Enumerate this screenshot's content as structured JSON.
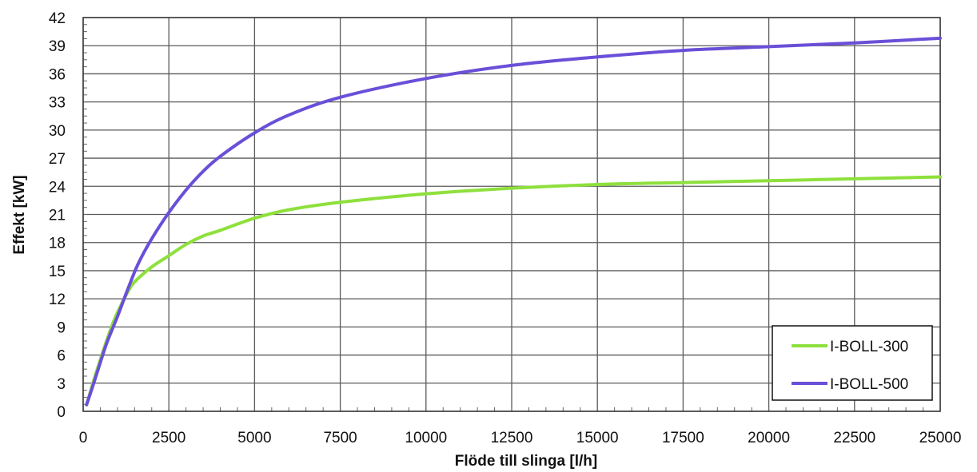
{
  "chart_data": {
    "type": "line",
    "title": "",
    "xlabel": "Flöde till slinga [l/h]",
    "ylabel": "Effekt [kW]",
    "xlim": [
      0,
      25000
    ],
    "ylim": [
      0,
      42
    ],
    "x_ticks": [
      0,
      2500,
      5000,
      7500,
      10000,
      12500,
      15000,
      17500,
      20000,
      22500,
      25000
    ],
    "y_ticks": [
      0,
      3,
      6,
      9,
      12,
      15,
      18,
      21,
      24,
      27,
      30,
      33,
      36,
      39,
      42
    ],
    "x_tick_labels": [
      "0",
      "2500",
      "5000",
      "7500",
      "10000",
      "12500",
      "15000",
      "17500",
      "20000",
      "22500",
      "25000"
    ],
    "y_tick_labels": [
      "0",
      "3",
      "6",
      "9",
      "12",
      "15",
      "18",
      "21",
      "24",
      "27",
      "30",
      "33",
      "36",
      "39",
      "42"
    ],
    "grid": true,
    "legend_position": "bottom-right",
    "series": [
      {
        "name": "I-BOLL-300",
        "color": "#8ee03c",
        "x": [
          100,
          300,
          500,
          700,
          900,
          1100,
          1300,
          1500,
          2000,
          2500,
          3000,
          3500,
          4000,
          5000,
          6000,
          7500,
          10000,
          12500,
          15000,
          17500,
          20000,
          22500,
          25000
        ],
        "y": [
          0.7,
          3.2,
          5.5,
          7.7,
          9.7,
          11.3,
          12.7,
          13.8,
          15.4,
          16.6,
          17.8,
          18.7,
          19.3,
          20.6,
          21.5,
          22.3,
          23.2,
          23.8,
          24.2,
          24.4,
          24.6,
          24.8,
          25.0
        ]
      },
      {
        "name": "I-BOLL-500",
        "color": "#6a4fd8",
        "x": [
          100,
          300,
          500,
          700,
          1000,
          1300,
          1600,
          2000,
          2500,
          3000,
          3500,
          4000,
          5000,
          6000,
          7500,
          10000,
          12500,
          15000,
          17500,
          20000,
          22500,
          25000
        ],
        "y": [
          0.7,
          2.9,
          5.2,
          7.4,
          10.1,
          13.0,
          15.7,
          18.4,
          21.2,
          23.6,
          25.6,
          27.2,
          29.7,
          31.6,
          33.5,
          35.5,
          36.9,
          37.8,
          38.5,
          38.9,
          39.3,
          39.8
        ]
      }
    ]
  }
}
